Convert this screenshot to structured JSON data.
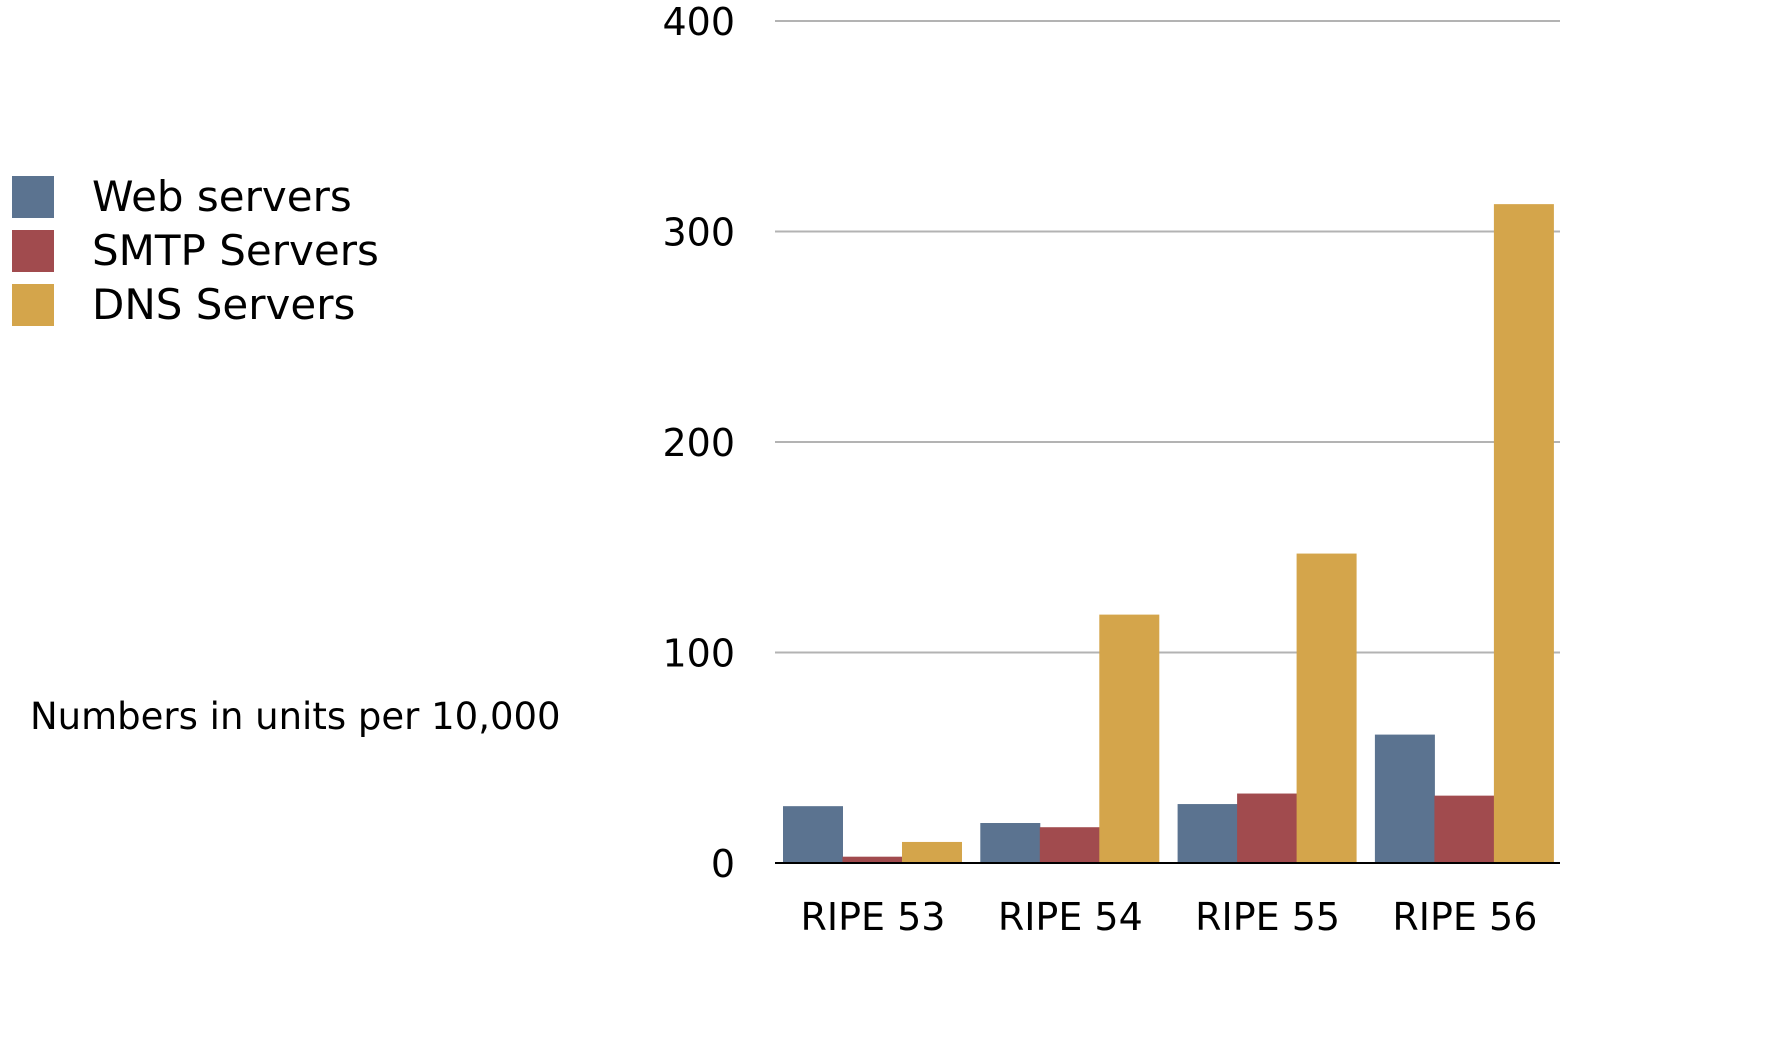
{
  "chart_data": {
    "type": "bar",
    "categories": [
      "RIPE 53",
      "RIPE 54",
      "RIPE 55",
      "RIPE 56"
    ],
    "series": [
      {
        "name": "Web servers",
        "values": [
          27,
          19,
          28,
          61
        ]
      },
      {
        "name": "SMTP Servers",
        "values": [
          3,
          17,
          33,
          32
        ]
      },
      {
        "name": "DNS Servers",
        "values": [
          10,
          118,
          147,
          313
        ]
      }
    ],
    "colors": [
      "#5b7390",
      "#a14b4e",
      "#d4a54b"
    ],
    "ylim": [
      0,
      400
    ],
    "yticks": [
      "0",
      "100",
      "200",
      "300",
      "400"
    ],
    "grid": true,
    "legend_position": "left",
    "note": "Numbers in units per 10,000"
  }
}
